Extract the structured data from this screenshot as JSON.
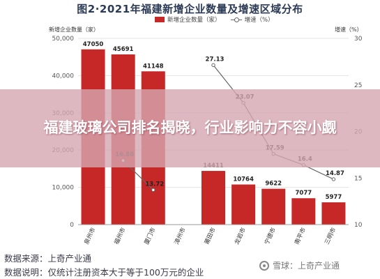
{
  "title": "图2·2021年福建新增企业数量及增速区域分布",
  "legend": {
    "bar": "新增企业数量（家）",
    "line": "增速（%）"
  },
  "overlay_text": "福建玻璃公司排名揭晓，行业影响力不容小觑",
  "notes": [
    "数据来源：上奇产业通",
    "数据说明：仅统计注册资本大于等于100万元的企业"
  ],
  "watermark": "雪球：上奇产业通",
  "colors": {
    "bar": "#c62828",
    "line": "#666666",
    "grid": "#e3e3e3",
    "tick": "#555555"
  },
  "chart_data": {
    "type": "bar",
    "categories": [
      "泉州市",
      "福州市",
      "厦门市",
      "漳州市",
      "莆田市",
      "龙岩市",
      "宁德市",
      "南平市",
      "三明市"
    ],
    "series": [
      {
        "name": "新增企业数量（家）",
        "type": "bar",
        "axis": "left",
        "values": [
          47050,
          45691,
          41148,
          null,
          14411,
          10764,
          9622,
          7077,
          5977
        ]
      },
      {
        "name": "增速（%）",
        "type": "line",
        "axis": "right",
        "values": [
          null,
          16.88,
          13.72,
          null,
          27.13,
          23.07,
          17.59,
          16.4,
          14.87
        ]
      }
    ],
    "ylabel": "新增企业数量（家）",
    "y2label": "增速（%）",
    "ylim": [
      0,
      50000
    ],
    "y2lim": [
      10,
      30
    ],
    "yticks": [
      "0",
      "10,000",
      "20,000",
      "30,000",
      "40,000",
      "50,000"
    ],
    "y2ticks": [
      "10",
      "15",
      "20",
      "25",
      "30"
    ],
    "grid": true,
    "legend_position": "top"
  }
}
